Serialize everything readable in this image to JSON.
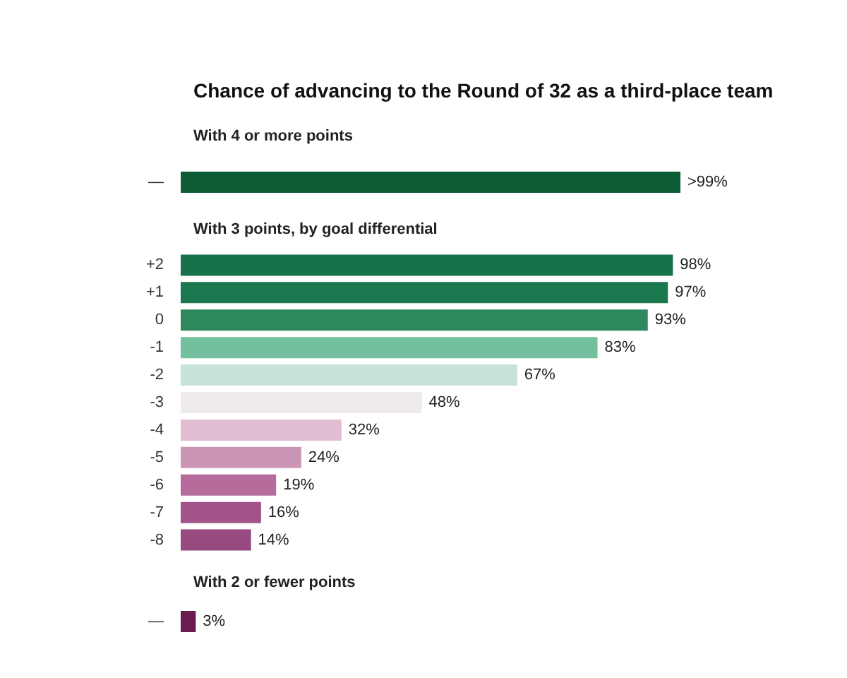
{
  "chart_data": [
    {
      "type": "bar",
      "orientation": "horizontal",
      "title": "Chance of advancing to the Round of 32 as a third-place team",
      "subtitle": "With 4 or more points",
      "categories": [
        "—"
      ],
      "values": [
        99.5
      ],
      "value_labels": [
        ">99%"
      ],
      "colors": [
        "#0d5c36"
      ],
      "tick_labels": "y"
    },
    {
      "type": "bar",
      "orientation": "horizontal",
      "subtitle": "With 3 points, by goal differential",
      "categories": [
        "+2",
        "+1",
        "0",
        "-1",
        "-2",
        "-3",
        "-4",
        "-5",
        "-6",
        "-7",
        "-8"
      ],
      "values": [
        98,
        97,
        93,
        83,
        67,
        48,
        32,
        24,
        19,
        16,
        14
      ],
      "value_labels": [
        "98%",
        "97%",
        "93%",
        "83%",
        "67%",
        "48%",
        "32%",
        "24%",
        "19%",
        "16%",
        "14%"
      ],
      "colors": [
        "#16704a",
        "#1b774e",
        "#2e8a5e",
        "#72c09d",
        "#c7e2d8",
        "#efebec",
        "#e1bdd1",
        "#cb95b6",
        "#b56c9c",
        "#a2548a",
        "#964a7f"
      ],
      "tick_labels": "y"
    },
    {
      "type": "bar",
      "orientation": "horizontal",
      "subtitle": "With 2 or fewer points",
      "categories": [
        "—"
      ],
      "values": [
        3
      ],
      "value_labels": [
        "3%"
      ],
      "colors": [
        "#6a1c4e"
      ],
      "tick_labels": "y"
    }
  ]
}
